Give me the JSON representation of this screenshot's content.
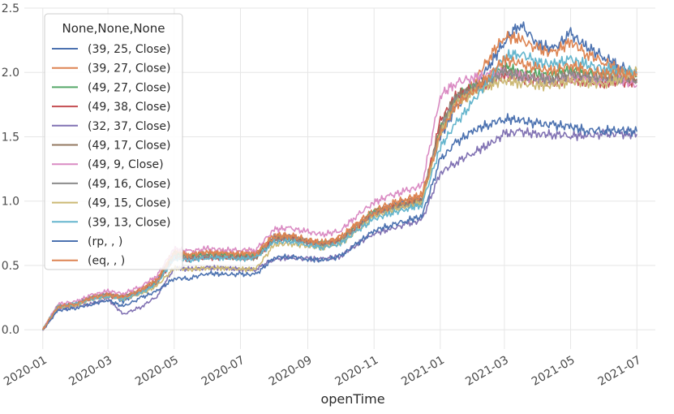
{
  "chart_data": {
    "type": "line",
    "xlabel": "openTime",
    "ylabel": "",
    "ylim": [
      -0.15,
      2.5
    ],
    "xlim": [
      "2019-12-15",
      "2021-07-18"
    ],
    "grid": true,
    "legend_placement": "top-left",
    "legend_title": "None,None,None",
    "x_ticks": [
      "2020-01",
      "2020-03",
      "2020-05",
      "2020-07",
      "2020-09",
      "2020-11",
      "2021-01",
      "2021-03",
      "2021-05",
      "2021-07"
    ],
    "y_ticks": [
      "0.0",
      "0.5",
      "1.0",
      "1.5",
      "2.0",
      "2.5"
    ],
    "x": [
      "2020-01-01",
      "2020-01-15",
      "2020-02-01",
      "2020-02-15",
      "2020-03-01",
      "2020-03-15",
      "2020-04-01",
      "2020-04-15",
      "2020-05-01",
      "2020-05-15",
      "2020-06-01",
      "2020-06-15",
      "2020-07-01",
      "2020-07-15",
      "2020-08-01",
      "2020-08-15",
      "2020-09-01",
      "2020-09-15",
      "2020-10-01",
      "2020-10-15",
      "2020-11-01",
      "2020-11-15",
      "2020-12-01",
      "2020-12-15",
      "2021-01-01",
      "2021-01-15",
      "2021-02-01",
      "2021-02-15",
      "2021-03-01",
      "2021-03-15",
      "2021-04-01",
      "2021-04-15",
      "2021-05-01",
      "2021-05-15",
      "2021-06-01",
      "2021-06-15",
      "2021-07-01"
    ],
    "series": [
      {
        "name": "(39, 25, Close)",
        "color": "#4c72b0",
        "values": [
          0.0,
          0.18,
          0.2,
          0.25,
          0.28,
          0.22,
          0.3,
          0.38,
          0.6,
          0.57,
          0.6,
          0.59,
          0.57,
          0.58,
          0.72,
          0.73,
          0.68,
          0.66,
          0.7,
          0.8,
          0.9,
          0.96,
          1.0,
          1.03,
          1.5,
          1.72,
          1.88,
          2.05,
          2.24,
          2.38,
          2.22,
          2.18,
          2.3,
          2.2,
          2.12,
          2.05,
          2.0
        ]
      },
      {
        "name": "(39, 27, Close)",
        "color": "#dd8452",
        "values": [
          0.0,
          0.19,
          0.2,
          0.26,
          0.28,
          0.26,
          0.32,
          0.4,
          0.62,
          0.59,
          0.61,
          0.6,
          0.6,
          0.6,
          0.74,
          0.74,
          0.7,
          0.68,
          0.72,
          0.82,
          0.93,
          0.98,
          1.02,
          1.05,
          1.55,
          1.76,
          1.92,
          2.12,
          2.28,
          2.26,
          2.18,
          2.15,
          2.24,
          2.15,
          2.08,
          2.02,
          1.98
        ]
      },
      {
        "name": "(49, 27, Close)",
        "color": "#55a868",
        "values": [
          0.0,
          0.18,
          0.2,
          0.25,
          0.27,
          0.25,
          0.31,
          0.37,
          0.58,
          0.57,
          0.58,
          0.58,
          0.57,
          0.57,
          0.71,
          0.72,
          0.68,
          0.67,
          0.7,
          0.8,
          0.92,
          0.95,
          0.98,
          1.0,
          1.55,
          1.8,
          1.9,
          1.95,
          2.04,
          2.0,
          1.98,
          1.98,
          2.02,
          1.99,
          1.98,
          2.0,
          1.97
        ]
      },
      {
        "name": "(49, 38, Close)",
        "color": "#c44e52",
        "values": [
          0.0,
          0.18,
          0.2,
          0.25,
          0.26,
          0.25,
          0.3,
          0.36,
          0.56,
          0.55,
          0.56,
          0.56,
          0.56,
          0.56,
          0.7,
          0.71,
          0.68,
          0.66,
          0.69,
          0.78,
          0.9,
          0.94,
          0.98,
          1.0,
          1.62,
          1.82,
          1.88,
          1.92,
          1.98,
          1.95,
          1.93,
          1.92,
          1.95,
          1.93,
          1.92,
          1.93,
          1.92
        ]
      },
      {
        "name": "(32, 37, Close)",
        "color": "#8172b3",
        "values": [
          0.0,
          0.16,
          0.18,
          0.2,
          0.24,
          0.12,
          0.18,
          0.26,
          0.48,
          0.47,
          0.48,
          0.48,
          0.47,
          0.47,
          0.55,
          0.56,
          0.55,
          0.55,
          0.57,
          0.66,
          0.75,
          0.78,
          0.82,
          0.85,
          1.22,
          1.3,
          1.38,
          1.44,
          1.52,
          1.54,
          1.52,
          1.52,
          1.51,
          1.51,
          1.52,
          1.52,
          1.52
        ]
      },
      {
        "name": "(49, 17, Close)",
        "color": "#937860",
        "values": [
          0.0,
          0.18,
          0.2,
          0.25,
          0.27,
          0.25,
          0.3,
          0.36,
          0.57,
          0.56,
          0.57,
          0.57,
          0.56,
          0.56,
          0.7,
          0.71,
          0.68,
          0.66,
          0.69,
          0.79,
          0.91,
          0.94,
          0.98,
          1.01,
          1.58,
          1.82,
          1.88,
          1.94,
          2.02,
          1.98,
          1.96,
          1.95,
          1.99,
          1.97,
          1.96,
          1.97,
          1.95
        ]
      },
      {
        "name": "(49, 9, Close)",
        "color": "#da8bc3",
        "values": [
          0.0,
          0.2,
          0.22,
          0.27,
          0.3,
          0.28,
          0.34,
          0.42,
          0.63,
          0.61,
          0.63,
          0.62,
          0.62,
          0.62,
          0.78,
          0.79,
          0.76,
          0.74,
          0.77,
          0.88,
          0.99,
          1.04,
          1.08,
          1.12,
          1.82,
          1.92,
          1.96,
          1.98,
          2.0,
          1.97,
          1.95,
          1.94,
          1.96,
          1.95,
          1.93,
          1.94,
          1.9
        ]
      },
      {
        "name": "(49, 16, Close)",
        "color": "#8c8c8c",
        "values": [
          0.0,
          0.18,
          0.2,
          0.25,
          0.27,
          0.25,
          0.3,
          0.36,
          0.57,
          0.56,
          0.57,
          0.57,
          0.56,
          0.56,
          0.7,
          0.71,
          0.68,
          0.66,
          0.69,
          0.79,
          0.9,
          0.94,
          0.97,
          1.0,
          1.56,
          1.8,
          1.87,
          1.93,
          2.01,
          1.97,
          1.95,
          1.94,
          1.98,
          1.96,
          1.95,
          1.96,
          1.94
        ]
      },
      {
        "name": "(49, 15, Close)",
        "color": "#ccb974",
        "values": [
          0.0,
          0.17,
          0.19,
          0.24,
          0.26,
          0.24,
          0.28,
          0.34,
          0.48,
          0.47,
          0.48,
          0.48,
          0.47,
          0.47,
          0.66,
          0.67,
          0.65,
          0.64,
          0.67,
          0.76,
          0.88,
          0.92,
          0.96,
          0.99,
          1.52,
          1.76,
          1.84,
          1.9,
          1.94,
          1.92,
          1.9,
          1.9,
          1.93,
          1.92,
          1.91,
          1.95,
          2.02
        ]
      },
      {
        "name": "(39, 13, Close)",
        "color": "#64b5cd",
        "values": [
          0.0,
          0.18,
          0.2,
          0.24,
          0.26,
          0.24,
          0.29,
          0.36,
          0.55,
          0.54,
          0.56,
          0.56,
          0.55,
          0.56,
          0.68,
          0.69,
          0.66,
          0.64,
          0.67,
          0.76,
          0.86,
          0.9,
          0.94,
          0.97,
          1.42,
          1.6,
          1.78,
          1.95,
          2.12,
          2.15,
          2.08,
          2.06,
          2.1,
          2.06,
          2.03,
          2.02,
          2.0
        ]
      },
      {
        "name": "(rp, , )",
        "color": "#4c72b0",
        "values": [
          0.0,
          0.15,
          0.17,
          0.2,
          0.23,
          0.18,
          0.25,
          0.3,
          0.4,
          0.4,
          0.44,
          0.43,
          0.43,
          0.43,
          0.56,
          0.57,
          0.55,
          0.54,
          0.57,
          0.66,
          0.77,
          0.81,
          0.85,
          0.88,
          1.32,
          1.45,
          1.55,
          1.6,
          1.64,
          1.63,
          1.6,
          1.59,
          1.58,
          1.55,
          1.55,
          1.55,
          1.54
        ]
      },
      {
        "name": "(eq, , )",
        "color": "#dd8452",
        "values": [
          0.0,
          0.18,
          0.2,
          0.25,
          0.27,
          0.25,
          0.31,
          0.38,
          0.6,
          0.58,
          0.6,
          0.59,
          0.59,
          0.59,
          0.72,
          0.73,
          0.69,
          0.67,
          0.71,
          0.81,
          0.91,
          0.96,
          1.0,
          1.03,
          1.52,
          1.74,
          1.86,
          1.98,
          2.1,
          2.07,
          2.03,
          2.01,
          2.06,
          2.02,
          1.99,
          1.99,
          1.97
        ]
      }
    ]
  }
}
